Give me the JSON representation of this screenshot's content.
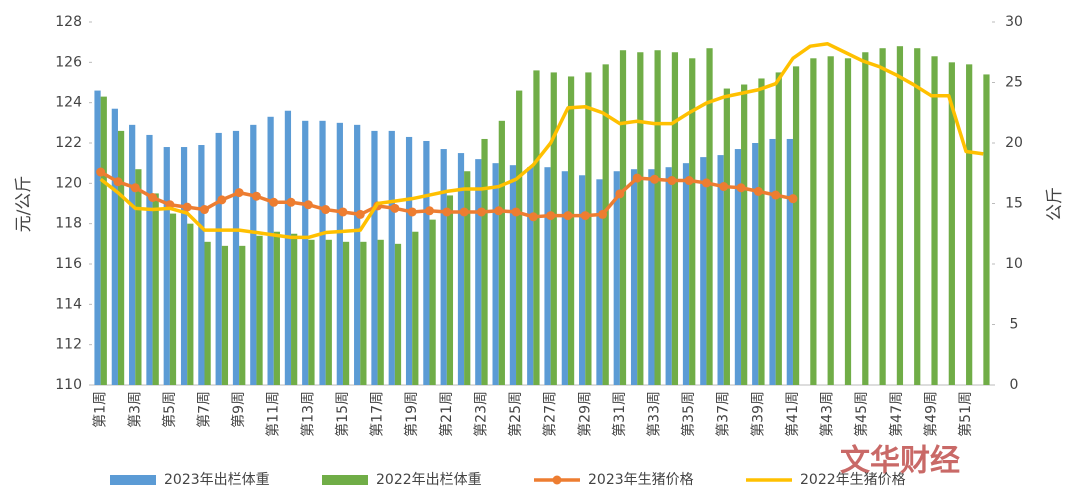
{
  "chart_data": {
    "type": "bar",
    "categories": [
      "第1周",
      null,
      "第3周",
      null,
      "第5周",
      null,
      "第7周",
      null,
      "第9周",
      null,
      "第11周",
      null,
      "第13周",
      null,
      "第15周",
      null,
      "第17周",
      null,
      "第19周",
      null,
      "第21周",
      null,
      "第23周",
      null,
      "第25周",
      null,
      "第27周",
      null,
      "第29周",
      null,
      "第31周",
      null,
      "第33周",
      null,
      "第35周",
      null,
      "第37周",
      null,
      "第39周",
      null,
      "第41周",
      null,
      "第43周",
      null,
      "第45周",
      null,
      "第47周",
      null,
      "第49周",
      null,
      "第51周",
      null
    ],
    "ylabel": "元/公斤",
    "y2label": "公斤",
    "ylim": [
      110,
      128
    ],
    "yticks": [
      110,
      112,
      114,
      116,
      118,
      120,
      122,
      124,
      126,
      128
    ],
    "y2lim": [
      0,
      30
    ],
    "y2ticks": [
      0,
      5,
      10,
      15,
      20,
      25,
      30
    ],
    "series": [
      {
        "name": "2023年出栏体重",
        "type": "bar",
        "color": "#5b9bd5",
        "values": [
          124.6,
          123.7,
          122.9,
          122.4,
          121.8,
          121.8,
          121.9,
          122.5,
          122.6,
          122.9,
          123.3,
          123.6,
          123.1,
          123.1,
          123.0,
          122.9,
          122.6,
          122.6,
          122.3,
          122.1,
          121.7,
          121.5,
          121.2,
          121.0,
          120.9,
          120.8,
          120.8,
          120.6,
          120.4,
          120.2,
          120.6,
          120.7,
          120.7,
          120.8,
          121.0,
          121.3,
          121.4,
          121.7,
          122.0,
          122.2,
          122.2,
          null,
          null,
          null,
          null,
          null,
          null,
          null,
          null,
          null,
          null,
          null
        ]
      },
      {
        "name": "2022年出栏体重",
        "type": "bar",
        "color": "#70ad47",
        "values": [
          124.3,
          122.6,
          120.7,
          119.5,
          118.5,
          118.0,
          117.1,
          116.9,
          116.9,
          117.4,
          117.6,
          117.5,
          117.2,
          117.2,
          117.1,
          117.1,
          117.2,
          117.0,
          117.6,
          118.2,
          119.4,
          120.6,
          122.2,
          123.1,
          124.6,
          125.6,
          125.5,
          125.3,
          125.5,
          125.9,
          126.6,
          126.5,
          126.6,
          126.5,
          126.2,
          126.7,
          124.7,
          124.9,
          125.2,
          125.5,
          125.8,
          126.2,
          126.3,
          126.2,
          126.5,
          126.7,
          126.8,
          126.7,
          126.3,
          126.0,
          125.9,
          125.4
        ]
      },
      {
        "name": "2023年生猪价格",
        "type": "line",
        "axis": "y2",
        "markers": true,
        "color": "#ed7d31",
        "values": [
          17.6,
          16.8,
          16.3,
          15.5,
          14.9,
          14.7,
          14.5,
          15.3,
          15.9,
          15.6,
          15.1,
          15.1,
          14.9,
          14.5,
          14.3,
          14.1,
          14.8,
          14.6,
          14.3,
          14.4,
          14.3,
          14.3,
          14.3,
          14.4,
          14.3,
          13.9,
          14.0,
          14.0,
          14.0,
          14.1,
          15.8,
          17.1,
          17.0,
          16.9,
          16.9,
          16.7,
          16.4,
          16.3,
          16.0,
          15.7,
          15.4,
          null,
          null,
          null,
          null,
          null,
          null,
          null,
          null,
          null,
          null,
          null
        ]
      },
      {
        "name": "2022年生猪价格",
        "type": "line",
        "axis": "y2",
        "markers": false,
        "color": "#ffc000",
        "values": [
          17.0,
          15.9,
          14.6,
          14.5,
          14.6,
          14.2,
          12.8,
          12.8,
          12.8,
          12.6,
          12.4,
          12.2,
          12.2,
          12.6,
          12.7,
          12.8,
          15.0,
          15.2,
          15.4,
          15.7,
          16.0,
          16.2,
          16.2,
          16.4,
          17.0,
          18.2,
          20.0,
          22.9,
          23.0,
          22.5,
          21.6,
          21.8,
          21.6,
          21.6,
          22.5,
          23.3,
          23.8,
          24.1,
          24.4,
          24.9,
          27.0,
          28.0,
          28.2,
          27.5,
          26.8,
          26.3,
          25.6,
          24.8,
          23.9,
          23.9,
          19.3,
          19.1
        ]
      }
    ],
    "watermark": "文华财经"
  }
}
